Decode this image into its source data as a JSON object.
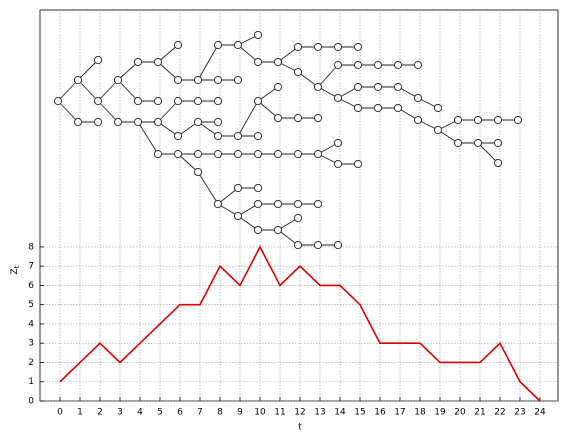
{
  "chart_data": {
    "type": "line",
    "x_label": "t",
    "y_label": "Z",
    "y_label_sub": "t",
    "x": [
      0,
      1,
      2,
      3,
      4,
      5,
      6,
      7,
      8,
      9,
      10,
      11,
      12,
      13,
      14,
      15,
      16,
      17,
      18,
      19,
      20,
      21,
      22,
      23,
      24
    ],
    "series": [
      {
        "color": "#dd0000",
        "values": [
          1,
          2,
          3,
          2,
          3,
          4,
          5,
          5,
          7,
          6,
          8,
          6,
          7,
          6,
          6,
          5,
          3,
          3,
          3,
          2,
          2,
          2,
          3,
          1,
          0
        ]
      }
    ],
    "xlim": [
      -1,
      24.9
    ],
    "ylim": [
      0,
      20.3
    ],
    "xticks": [
      0,
      1,
      2,
      3,
      4,
      5,
      6,
      7,
      8,
      9,
      10,
      11,
      12,
      13,
      14,
      15,
      16,
      17,
      18,
      19,
      20,
      21,
      22,
      23,
      24
    ],
    "yticks": [
      0,
      1,
      2,
      3,
      4,
      5,
      6,
      7,
      8
    ],
    "grid": true
  }
}
